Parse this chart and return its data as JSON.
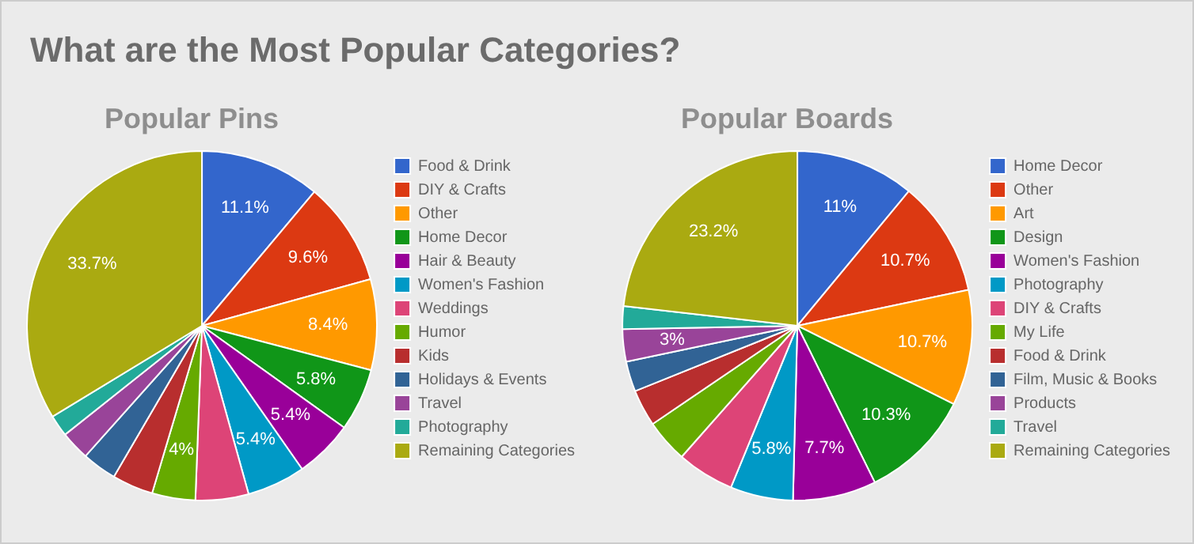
{
  "chart_data": [
    {
      "type": "pie",
      "title": "What are the Most Popular Categories?",
      "subtitle": "Popular Pins",
      "legend": "right",
      "categories": [
        "Food & Drink",
        "DIY & Crafts",
        "Other",
        "Home Decor",
        "Hair & Beauty",
        "Women's Fashion",
        "Weddings",
        "Humor",
        "Kids",
        "Holidays & Events",
        "Travel",
        "Photography",
        "Remaining Categories"
      ],
      "values": [
        11.1,
        9.6,
        8.4,
        5.8,
        5.4,
        5.4,
        4.9,
        4,
        3.8,
        3.2,
        2.7,
        2,
        33.7
      ],
      "value_labels": [
        "11.1%",
        "9.6%",
        "8.4%",
        "5.8%",
        "5.4%",
        "5.4%",
        null,
        "4%",
        null,
        null,
        null,
        null,
        "33.7%"
      ],
      "colors": [
        "#3366cc",
        "#dc3912",
        "#ff9900",
        "#109618",
        "#990099",
        "#0099c6",
        "#dd4477",
        "#66aa00",
        "#b82e2e",
        "#316395",
        "#994499",
        "#22aa99",
        "#aaaa11"
      ]
    },
    {
      "type": "pie",
      "title": "Popular Boards",
      "legend": "right",
      "categories": [
        "Home Decor",
        "Other",
        "Art",
        "Design",
        "Women's Fashion",
        "Photography",
        "DIY & Crafts",
        "My Life",
        "Food & Drink",
        "Film, Music & Books",
        "Products",
        "Travel",
        "Remaining Categories"
      ],
      "values": [
        11,
        10.7,
        10.7,
        10.3,
        7.7,
        5.8,
        5.3,
        4,
        3.4,
        2.8,
        3,
        2.1,
        23.2
      ],
      "value_labels": [
        "11%",
        "10.7%",
        "10.7%",
        "10.3%",
        "7.7%",
        "5.8%",
        null,
        null,
        null,
        null,
        "3%",
        null,
        "23.2%"
      ],
      "colors": [
        "#3366cc",
        "#dc3912",
        "#ff9900",
        "#109618",
        "#990099",
        "#0099c6",
        "#dd4477",
        "#66aa00",
        "#b82e2e",
        "#316395",
        "#994499",
        "#22aa99",
        "#aaaa11"
      ]
    }
  ]
}
